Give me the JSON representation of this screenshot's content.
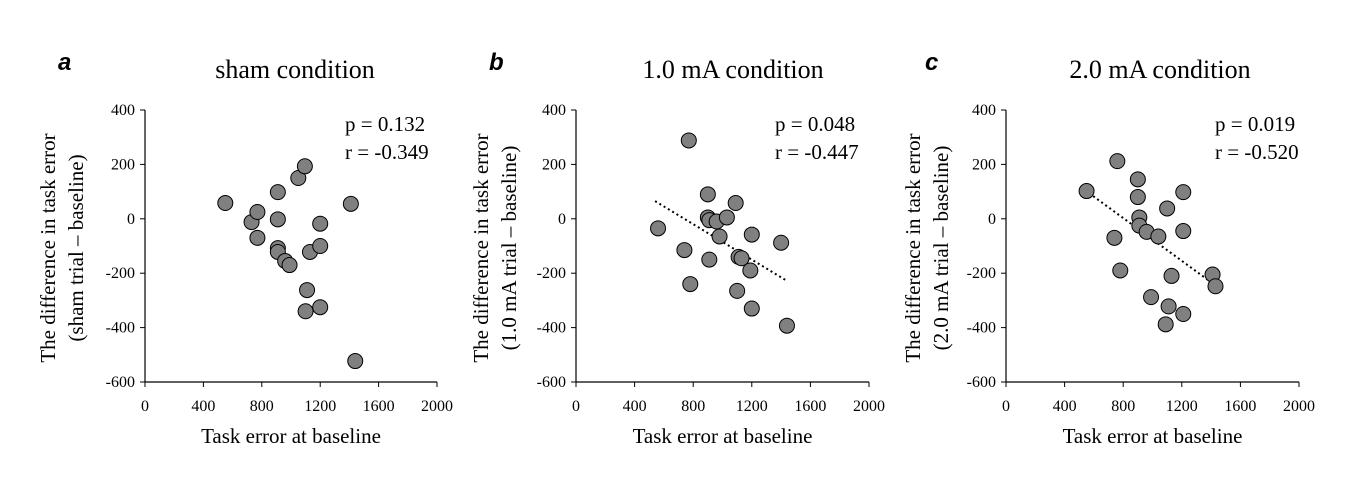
{
  "chart_data": [
    {
      "type": "scatter",
      "panel_label": "a",
      "title": "sham condition",
      "xlabel": "Task error at baseline",
      "ylabel_lines": [
        "The difference in task error",
        "(sham trial – baseline)"
      ],
      "xlim": [
        0,
        2000
      ],
      "ylim": [
        -600,
        400
      ],
      "xticks": [
        0,
        400,
        800,
        1200,
        1600,
        2000
      ],
      "yticks": [
        -600,
        -400,
        -200,
        0,
        200,
        400
      ],
      "stats": {
        "p": "p = 0.132",
        "r": "r = -0.349"
      },
      "trendline": null,
      "points": [
        {
          "x": 550,
          "y": 58
        },
        {
          "x": 730,
          "y": -12
        },
        {
          "x": 770,
          "y": 25
        },
        {
          "x": 770,
          "y": -70
        },
        {
          "x": 910,
          "y": 98
        },
        {
          "x": 910,
          "y": -2
        },
        {
          "x": 910,
          "y": -108
        },
        {
          "x": 910,
          "y": -122
        },
        {
          "x": 960,
          "y": -155
        },
        {
          "x": 990,
          "y": -170
        },
        {
          "x": 1050,
          "y": 150
        },
        {
          "x": 1095,
          "y": 193
        },
        {
          "x": 1100,
          "y": -340
        },
        {
          "x": 1110,
          "y": -262
        },
        {
          "x": 1130,
          "y": -122
        },
        {
          "x": 1200,
          "y": -18
        },
        {
          "x": 1200,
          "y": -100
        },
        {
          "x": 1200,
          "y": -325
        },
        {
          "x": 1410,
          "y": 55
        },
        {
          "x": 1440,
          "y": -523
        }
      ]
    },
    {
      "type": "scatter",
      "panel_label": "b",
      "title": "1.0 mA condition",
      "xlabel": "Task error at baseline",
      "ylabel_lines": [
        "The difference in task error",
        "(1.0 mA trial – baseline)"
      ],
      "xlim": [
        0,
        2000
      ],
      "ylim": [
        -600,
        400
      ],
      "xticks": [
        0,
        400,
        800,
        1200,
        1600,
        2000
      ],
      "yticks": [
        -600,
        -400,
        -200,
        0,
        200,
        400
      ],
      "stats": {
        "p": "p = 0.048",
        "r": "r = -0.447"
      },
      "trendline": {
        "x": [
          540,
          1430
        ],
        "y": [
          65,
          -225
        ]
      },
      "points": [
        {
          "x": 560,
          "y": -35
        },
        {
          "x": 740,
          "y": -115
        },
        {
          "x": 770,
          "y": 288
        },
        {
          "x": 780,
          "y": -240
        },
        {
          "x": 900,
          "y": 90
        },
        {
          "x": 900,
          "y": 5
        },
        {
          "x": 910,
          "y": -5
        },
        {
          "x": 910,
          "y": -150
        },
        {
          "x": 960,
          "y": -10
        },
        {
          "x": 980,
          "y": -65
        },
        {
          "x": 1030,
          "y": 5
        },
        {
          "x": 1090,
          "y": 58
        },
        {
          "x": 1100,
          "y": -265
        },
        {
          "x": 1110,
          "y": -140
        },
        {
          "x": 1130,
          "y": -145
        },
        {
          "x": 1190,
          "y": -190
        },
        {
          "x": 1200,
          "y": -58
        },
        {
          "x": 1200,
          "y": -330
        },
        {
          "x": 1400,
          "y": -88
        },
        {
          "x": 1440,
          "y": -393
        }
      ]
    },
    {
      "type": "scatter",
      "panel_label": "c",
      "title": "2.0 mA condition",
      "xlabel": "Task error at baseline",
      "ylabel_lines": [
        "The difference in task error",
        "(2.0 mA trial – baseline)"
      ],
      "xlim": [
        0,
        2000
      ],
      "ylim": [
        -600,
        400
      ],
      "xticks": [
        0,
        400,
        800,
        1200,
        1600,
        2000
      ],
      "yticks": [
        -600,
        -400,
        -200,
        0,
        200,
        400
      ],
      "stats": {
        "p": "p = 0.019",
        "r": "r = -0.520"
      },
      "trendline": {
        "x": [
          540,
          1430
        ],
        "y": [
          105,
          -245
        ]
      },
      "points": [
        {
          "x": 550,
          "y": 102
        },
        {
          "x": 740,
          "y": -70
        },
        {
          "x": 760,
          "y": 212
        },
        {
          "x": 780,
          "y": -190
        },
        {
          "x": 900,
          "y": 145
        },
        {
          "x": 900,
          "y": 80
        },
        {
          "x": 910,
          "y": 5
        },
        {
          "x": 910,
          "y": -25
        },
        {
          "x": 960,
          "y": -48
        },
        {
          "x": 990,
          "y": -288
        },
        {
          "x": 1040,
          "y": -65
        },
        {
          "x": 1090,
          "y": -388
        },
        {
          "x": 1100,
          "y": 38
        },
        {
          "x": 1110,
          "y": -322
        },
        {
          "x": 1130,
          "y": -210
        },
        {
          "x": 1210,
          "y": 98
        },
        {
          "x": 1210,
          "y": -45
        },
        {
          "x": 1210,
          "y": -350
        },
        {
          "x": 1410,
          "y": -205
        },
        {
          "x": 1430,
          "y": -248
        }
      ]
    }
  ]
}
